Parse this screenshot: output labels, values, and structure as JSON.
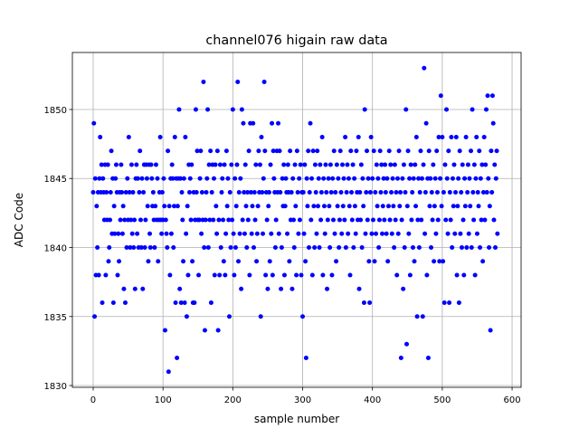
{
  "chart_data": {
    "type": "scatter",
    "title": "channel076 higain raw data",
    "x_label": "sample number",
    "y_label": "ADC Code",
    "series": [
      {
        "color": "#0000ff",
        "x": [
          0,
          1,
          2,
          3,
          4,
          5,
          6,
          7,
          8,
          9,
          10,
          11,
          12,
          13,
          14,
          15,
          16,
          17,
          18,
          19,
          20,
          21,
          22,
          23,
          24,
          25,
          26,
          27,
          28,
          29,
          30,
          31,
          32,
          33,
          34,
          35,
          36,
          37,
          38,
          39,
          40,
          41,
          42,
          43,
          44,
          45,
          46,
          47,
          48,
          49,
          50,
          51,
          52,
          53,
          54,
          55,
          56,
          57,
          58,
          59,
          60,
          61,
          62,
          63,
          64,
          65,
          66,
          67,
          68,
          69,
          70,
          71,
          72,
          73,
          74,
          75,
          76,
          77,
          78,
          79,
          80,
          81,
          82,
          83,
          84,
          85,
          86,
          87,
          88,
          89,
          90,
          91,
          92,
          93,
          94,
          95,
          96,
          97,
          98,
          99,
          100,
          101,
          102,
          103,
          104,
          105,
          106,
          107,
          108,
          109,
          110,
          111,
          112,
          113,
          114,
          115,
          116,
          117,
          118,
          119,
          120,
          121,
          122,
          123,
          124,
          125,
          126,
          127,
          128,
          129,
          130,
          131,
          132,
          133,
          134,
          135,
          136,
          137,
          138,
          139,
          140,
          141,
          142,
          143,
          144,
          145,
          146,
          147,
          148,
          149,
          150,
          151,
          152,
          153,
          154,
          155,
          156,
          157,
          158,
          159,
          160,
          161,
          162,
          163,
          164,
          165,
          166,
          167,
          168,
          169,
          170,
          171,
          172,
          173,
          174,
          175,
          176,
          177,
          178,
          179,
          180,
          181,
          182,
          183,
          184,
          185,
          186,
          187,
          188,
          189,
          190,
          191,
          192,
          193,
          194,
          195,
          196,
          197,
          198,
          199,
          200,
          201,
          202,
          203,
          204,
          205,
          206,
          207,
          208,
          209,
          210,
          211,
          212,
          213,
          214,
          215,
          216,
          217,
          218,
          219,
          220,
          221,
          222,
          223,
          224,
          225,
          226,
          227,
          228,
          229,
          230,
          231,
          232,
          233,
          234,
          235,
          236,
          237,
          238,
          239,
          240,
          241,
          242,
          243,
          244,
          245,
          246,
          247,
          248,
          249,
          250,
          251,
          252,
          253,
          254,
          255,
          256,
          257,
          258,
          259,
          260,
          261,
          262,
          263,
          264,
          265,
          266,
          267,
          268,
          269,
          270,
          271,
          272,
          273,
          274,
          275,
          276,
          277,
          278,
          279,
          280,
          281,
          282,
          283,
          284,
          285,
          286,
          287,
          288,
          289,
          290,
          291,
          292,
          293,
          294,
          295,
          296,
          297,
          298,
          299,
          300,
          301,
          302,
          303,
          304,
          305,
          306,
          307,
          308,
          309,
          310,
          311,
          312,
          313,
          314,
          315,
          316,
          317,
          318,
          319,
          320,
          321,
          322,
          323,
          324,
          325,
          326,
          327,
          328,
          329,
          330,
          331,
          332,
          333,
          334,
          335,
          336,
          337,
          338,
          339,
          340,
          341,
          342,
          343,
          344,
          345,
          346,
          347,
          348,
          349,
          350,
          351,
          352,
          353,
          354,
          355,
          356,
          357,
          358,
          359,
          360,
          361,
          362,
          363,
          364,
          365,
          366,
          367,
          368,
          369,
          370,
          371,
          372,
          373,
          374,
          375,
          376,
          377,
          378,
          379,
          380,
          381,
          382,
          383,
          384,
          385,
          386,
          387,
          388,
          389,
          390,
          391,
          392,
          393,
          394,
          395,
          396,
          397,
          398,
          399,
          400,
          401,
          402,
          403,
          404,
          405,
          406,
          407,
          408,
          409,
          410,
          411,
          412,
          413,
          414,
          415,
          416,
          417,
          418,
          419,
          420,
          421,
          422,
          423,
          424,
          425,
          426,
          427,
          428,
          429,
          430,
          431,
          432,
          433,
          434,
          435,
          436,
          437,
          438,
          439,
          440,
          441,
          442,
          443,
          444,
          445,
          446,
          447,
          448,
          449,
          450,
          451,
          452,
          453,
          454,
          455,
          456,
          457,
          458,
          459,
          460,
          461,
          462,
          463,
          464,
          465,
          466,
          467,
          468,
          469,
          470,
          471,
          472,
          473,
          474,
          475,
          476,
          477,
          478,
          479,
          480,
          481,
          482,
          483,
          484,
          485,
          486,
          487,
          488,
          489,
          490,
          491,
          492,
          493,
          494,
          495,
          496,
          497,
          498,
          499,
          500,
          501,
          502,
          503,
          504,
          505,
          506,
          507,
          508,
          509,
          510,
          511,
          512,
          513,
          514,
          515,
          516,
          517,
          518,
          519,
          520,
          521,
          522,
          523,
          524,
          525,
          526,
          527,
          528,
          529,
          530,
          531,
          532,
          533,
          534,
          535,
          536,
          537,
          538,
          539,
          540,
          541,
          542,
          543,
          544,
          545,
          546,
          547,
          548,
          549,
          550,
          551,
          552,
          553,
          554,
          555,
          556,
          557,
          558,
          559,
          560,
          561,
          562,
          563,
          564,
          565,
          566,
          567,
          568,
          569,
          570,
          571,
          572,
          573,
          574,
          575,
          576,
          577,
          578,
          579
        ],
        "values": [
          1844,
          1849,
          1835,
          1845,
          1838,
          1843,
          1840,
          1844,
          1838,
          1845,
          1848,
          1844,
          1846,
          1836,
          1845,
          1844,
          1842,
          1846,
          1838,
          1844,
          1842,
          1846,
          1839,
          1840,
          1842,
          1844,
          1847,
          1841,
          1845,
          1836,
          1843,
          1841,
          1845,
          1846,
          1844,
          1838,
          1841,
          1839,
          1844,
          1842,
          1846,
          1844,
          1841,
          1843,
          1837,
          1842,
          1836,
          1844,
          1840,
          1845,
          1842,
          1848,
          1844,
          1840,
          1842,
          1846,
          1841,
          1844,
          1840,
          1842,
          1837,
          1845,
          1846,
          1841,
          1845,
          1840,
          1844,
          1847,
          1842,
          1840,
          1845,
          1837,
          1844,
          1846,
          1840,
          1842,
          1846,
          1845,
          1843,
          1839,
          1846,
          1841,
          1840,
          1846,
          1845,
          1843,
          1844,
          1842,
          1840,
          1843,
          1846,
          1842,
          1845,
          1839,
          1842,
          1844,
          1848,
          1842,
          1841,
          1844,
          1842,
          1845,
          1843,
          1834,
          1842,
          1841,
          1840,
          1847,
          1831,
          1843,
          1838,
          1845,
          1841,
          1846,
          1845,
          1840,
          1843,
          1848,
          1836,
          1845,
          1832,
          1843,
          1845,
          1850,
          1837,
          1845,
          1836,
          1844,
          1842,
          1839,
          1845,
          1836,
          1848,
          1841,
          1835,
          1843,
          1838,
          1846,
          1844,
          1845,
          1842,
          1846,
          1839,
          1836,
          1844,
          1836,
          1842,
          1850,
          1844,
          1847,
          1842,
          1838,
          1842,
          1845,
          1847,
          1841,
          1844,
          1842,
          1852,
          1840,
          1834,
          1842,
          1844,
          1845,
          1850,
          1840,
          1846,
          1842,
          1847,
          1836,
          1844,
          1846,
          1842,
          1845,
          1838,
          1846,
          1843,
          1841,
          1847,
          1834,
          1842,
          1838,
          1846,
          1840,
          1844,
          1845,
          1842,
          1839,
          1846,
          1838,
          1841,
          1847,
          1843,
          1845,
          1842,
          1835,
          1844,
          1840,
          1846,
          1842,
          1850,
          1841,
          1838,
          1845,
          1840,
          1843,
          1846,
          1852,
          1839,
          1844,
          1841,
          1845,
          1837,
          1850,
          1842,
          1849,
          1844,
          1841,
          1846,
          1843,
          1840,
          1844,
          1842,
          1847,
          1838,
          1849,
          1844,
          1841,
          1843,
          1849,
          1840,
          1844,
          1842,
          1846,
          1839,
          1841,
          1843,
          1847,
          1844,
          1846,
          1835,
          1848,
          1844,
          1841,
          1845,
          1852,
          1847,
          1838,
          1844,
          1842,
          1837,
          1843,
          1844,
          1839,
          1846,
          1841,
          1849,
          1838,
          1847,
          1845,
          1844,
          1840,
          1842,
          1847,
          1844,
          1849,
          1841,
          1847,
          1844,
          1837,
          1840,
          1845,
          1843,
          1846,
          1838,
          1843,
          1845,
          1844,
          1841,
          1846,
          1844,
          1839,
          1847,
          1842,
          1844,
          1837,
          1845,
          1842,
          1840,
          1846,
          1843,
          1838,
          1847,
          1844,
          1841,
          1845,
          1842,
          1846,
          1838,
          1844,
          1835,
          1844,
          1841,
          1846,
          1839,
          1832,
          1845,
          1843,
          1847,
          1840,
          1844,
          1849,
          1842,
          1845,
          1838,
          1847,
          1843,
          1840,
          1846,
          1844,
          1841,
          1847,
          1843,
          1845,
          1840,
          1846,
          1842,
          1844,
          1848,
          1838,
          1845,
          1843,
          1841,
          1846,
          1844,
          1837,
          1842,
          1845,
          1843,
          1840,
          1846,
          1844,
          1838,
          1845,
          1842,
          1847,
          1841,
          1844,
          1839,
          1846,
          1843,
          1845,
          1840,
          1842,
          1847,
          1844,
          1841,
          1846,
          1843,
          1845,
          1842,
          1848,
          1840,
          1844,
          1846,
          1841,
          1845,
          1843,
          1838,
          1847,
          1844,
          1842,
          1846,
          1840,
          1845,
          1843,
          1841,
          1847,
          1844,
          1842,
          1848,
          1837,
          1844,
          1842,
          1846,
          1840,
          1845,
          1843,
          1836,
          1850,
          1841,
          1844,
          1847,
          1842,
          1845,
          1839,
          1836,
          1844,
          1848,
          1841,
          1845,
          1842,
          1847,
          1839,
          1844,
          1841,
          1846,
          1843,
          1845,
          1840,
          1842,
          1847,
          1844,
          1846,
          1841,
          1843,
          1845,
          1842,
          1846,
          1844,
          1841,
          1845,
          1839,
          1843,
          1847,
          1842,
          1846,
          1844,
          1841,
          1845,
          1843,
          1840,
          1846,
          1842,
          1844,
          1838,
          1845,
          1841,
          1847,
          1843,
          1844,
          1832,
          1842,
          1845,
          1837,
          1846,
          1840,
          1844,
          1850,
          1833,
          1843,
          1847,
          1841,
          1845,
          1838,
          1846,
          1842,
          1844,
          1840,
          1845,
          1839,
          1846,
          1843,
          1848,
          1835,
          1842,
          1845,
          1840,
          1844,
          1847,
          1842,
          1845,
          1835,
          1846,
          1853,
          1841,
          1844,
          1849,
          1838,
          1845,
          1832,
          1847,
          1843,
          1845,
          1840,
          1844,
          1842,
          1846,
          1839,
          1843,
          1845,
          1841,
          1847,
          1844,
          1842,
          1848,
          1839,
          1845,
          1851,
          1843,
          1848,
          1839,
          1844,
          1836,
          1846,
          1842,
          1850,
          1845,
          1841,
          1847,
          1836,
          1844,
          1842,
          1848,
          1840,
          1845,
          1843,
          1846,
          1841,
          1844,
          1848,
          1838,
          1843,
          1845,
          1836,
          1847,
          1841,
          1844,
          1840,
          1846,
          1842,
          1838,
          1845,
          1843,
          1848,
          1840,
          1844,
          1846,
          1841,
          1845,
          1843,
          1847,
          1840,
          1850,
          1844,
          1842,
          1846,
          1838,
          1845,
          1848,
          1841,
          1844,
          1843,
          1847,
          1840,
          1845,
          1842,
          1846,
          1839,
          1844,
          1848,
          1842,
          1846,
          1850,
          1844,
          1851,
          1845,
          1840,
          1843,
          1834,
          1847,
          1844,
          1851,
          1849,
          1842,
          1846,
          1840,
          1845,
          1847,
          1841
        ]
      }
    ],
    "xlim": [
      -29.8,
      612.9
    ],
    "ylim": [
      1829.87,
      1854.13
    ],
    "xticks": [
      0,
      100,
      200,
      300,
      400,
      500,
      600
    ],
    "yticks": [
      1830,
      1835,
      1840,
      1845,
      1850
    ],
    "grid": true
  }
}
